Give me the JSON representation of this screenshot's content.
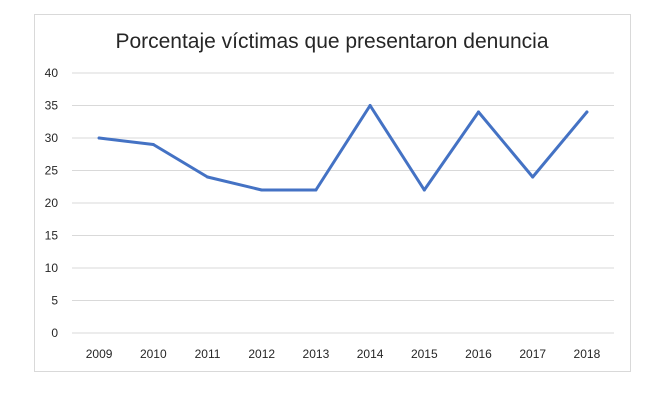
{
  "chart_data": {
    "type": "line",
    "title": "Porcentaje víctimas que presentaron denuncia",
    "xlabel": "",
    "ylabel": "",
    "categories": [
      "2009",
      "2010",
      "2011",
      "2012",
      "2013",
      "2014",
      "2015",
      "2016",
      "2017",
      "2018"
    ],
    "series": [
      {
        "values": [
          30,
          29,
          24,
          22,
          22,
          35,
          22,
          34,
          24,
          34
        ],
        "color": "#4472c4"
      }
    ],
    "ylim": [
      0,
      40
    ],
    "yticks": [
      0,
      5,
      10,
      15,
      20,
      25,
      30,
      35,
      40
    ],
    "grid": true,
    "legend": "none"
  }
}
